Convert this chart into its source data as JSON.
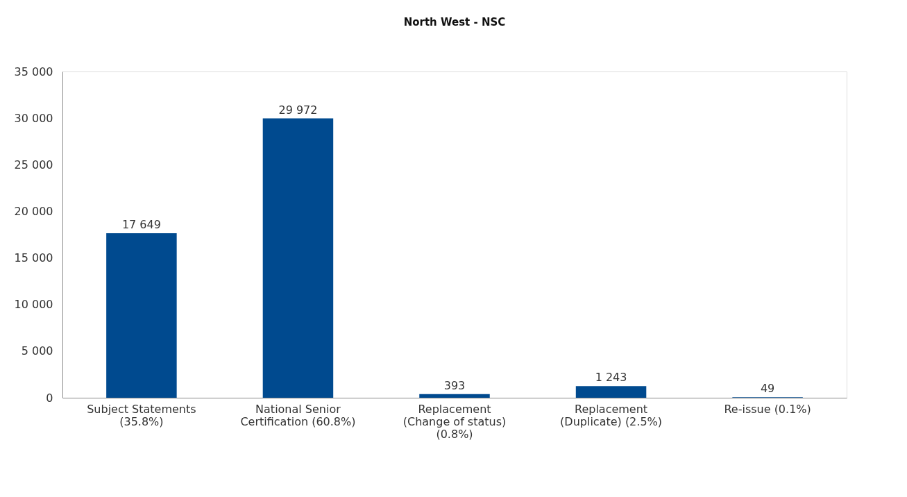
{
  "chart_data": {
    "type": "bar",
    "title": "North West - NSC",
    "categories": [
      "Subject Statements\n(35.8%)",
      "National Senior\nCertification (60.8%)",
      "Replacement\n(Change of status)\n(0.8%)",
      "Replacement\n(Duplicate) (2.5%)",
      "Re-issue (0.1%)"
    ],
    "values": [
      17649,
      29972,
      393,
      1243,
      49
    ],
    "value_labels": [
      "17 649",
      "29 972",
      "393",
      "1 243",
      "49"
    ],
    "color": "#004a8f",
    "ylim": [
      0,
      35000
    ],
    "yticks": [
      {
        "value": 0,
        "label": "0"
      },
      {
        "value": 5000,
        "label": "5 000"
      },
      {
        "value": 10000,
        "label": "10 000"
      },
      {
        "value": 15000,
        "label": "15 000"
      },
      {
        "value": 20000,
        "label": "20 000"
      },
      {
        "value": 25000,
        "label": "25 000"
      },
      {
        "value": 30000,
        "label": "30 000"
      },
      {
        "value": 35000,
        "label": "35 000"
      }
    ],
    "grid": false
  }
}
